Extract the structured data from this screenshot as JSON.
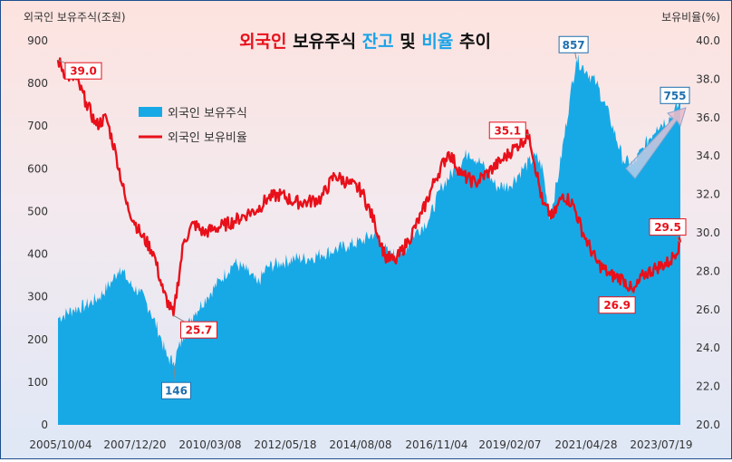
{
  "chart_data": {
    "type": "area+line",
    "title_parts": [
      {
        "text": "외국인",
        "color": "#e8101a"
      },
      {
        "text": " 보유주식 ",
        "color": "#111111"
      },
      {
        "text": "잔고",
        "color": "#1aa3e8"
      },
      {
        "text": " 및 ",
        "color": "#111111"
      },
      {
        "text": "비율",
        "color": "#1aa3e8"
      },
      {
        "text": " 추이",
        "color": "#111111"
      }
    ],
    "y_left_label": "외국인 보유주식(조원)",
    "y_right_label": "보유비율(%)",
    "y_left_range": [
      0,
      900
    ],
    "y_left_ticks": [
      "0",
      "100",
      "200",
      "300",
      "400",
      "500",
      "600",
      "700",
      "800",
      "900"
    ],
    "y_right_range": [
      20.0,
      40.0
    ],
    "y_right_ticks": [
      "20.0",
      "22.0",
      "24.0",
      "26.0",
      "28.0",
      "30.0",
      "32.0",
      "34.0",
      "36.0",
      "38.0",
      "40.0"
    ],
    "x_tick_labels": [
      "2005/10/04",
      "2007/12/20",
      "2010/03/08",
      "2012/05/18",
      "2014/08/08",
      "2016/11/04",
      "2019/02/07",
      "2021/04/28",
      "2023/07/19"
    ],
    "legend": "top-left",
    "series": [
      {
        "name": "외국인 보유주식",
        "axis": "left",
        "kind": "area",
        "color": "#17a9e6",
        "x": [
          2005.76,
          2006.2,
          2006.6,
          2007.0,
          2007.4,
          2007.6,
          2007.9,
          2008.2,
          2008.5,
          2008.8,
          2009.0,
          2009.2,
          2009.5,
          2009.8,
          2010.2,
          2010.6,
          2011.0,
          2011.4,
          2011.7,
          2012.0,
          2012.4,
          2012.8,
          2013.2,
          2013.6,
          2014.0,
          2014.4,
          2014.8,
          2015.2,
          2015.6,
          2016.0,
          2016.4,
          2016.8,
          2017.2,
          2017.6,
          2018.0,
          2018.4,
          2018.8,
          2019.2,
          2019.6,
          2020.0,
          2020.2,
          2020.4,
          2020.7,
          2021.0,
          2021.2,
          2021.5,
          2021.8,
          2022.2,
          2022.6,
          2022.9,
          2023.2,
          2023.6,
          2024.0,
          2024.3
        ],
        "values": [
          250,
          270,
          280,
          300,
          340,
          370,
          330,
          310,
          270,
          210,
          160,
          146,
          210,
          260,
          300,
          340,
          380,
          360,
          330,
          370,
          380,
          390,
          390,
          400,
          410,
          420,
          430,
          450,
          400,
          400,
          450,
          480,
          560,
          600,
          640,
          610,
          560,
          560,
          600,
          630,
          600,
          480,
          600,
          760,
          857,
          830,
          800,
          720,
          620,
          610,
          650,
          700,
          720,
          755
        ]
      },
      {
        "name": "외국인 보유비율",
        "axis": "right",
        "kind": "line",
        "color": "#e8101a",
        "x": [
          2005.76,
          2006.0,
          2006.3,
          2006.6,
          2006.9,
          2007.2,
          2007.5,
          2007.8,
          2008.2,
          2008.6,
          2008.9,
          2009.2,
          2009.5,
          2009.8,
          2010.1,
          2010.4,
          2010.7,
          2011.0,
          2011.4,
          2011.7,
          2012.0,
          2012.4,
          2012.8,
          2013.2,
          2013.6,
          2014.0,
          2014.4,
          2014.8,
          2015.2,
          2015.5,
          2015.8,
          2016.2,
          2016.6,
          2017.0,
          2017.4,
          2017.8,
          2018.2,
          2018.6,
          2019.0,
          2019.4,
          2019.8,
          2020.2,
          2020.5,
          2020.8,
          2021.1,
          2021.4,
          2021.8,
          2022.2,
          2022.6,
          2022.9,
          2023.2,
          2023.6,
          2024.0,
          2024.3
        ],
        "values": [
          39.0,
          38.2,
          38.0,
          36.8,
          35.6,
          36.0,
          34.0,
          31.5,
          30.0,
          29.0,
          26.9,
          25.7,
          29.5,
          30.5,
          30.0,
          30.2,
          30.4,
          30.6,
          31.0,
          31.2,
          31.8,
          32.0,
          31.6,
          31.6,
          31.8,
          33.0,
          32.6,
          32.2,
          30.5,
          28.8,
          28.5,
          29.6,
          31.0,
          32.8,
          34.2,
          33.0,
          32.6,
          33.2,
          33.8,
          34.5,
          35.1,
          31.5,
          30.8,
          32.0,
          31.5,
          30.0,
          28.5,
          27.8,
          27.6,
          26.9,
          27.8,
          28.2,
          28.5,
          29.5
        ]
      }
    ],
    "annotations": [
      {
        "text": "39.0",
        "series": "외국인 보유비율",
        "x": 2005.76,
        "y": 39.0,
        "color": "#e8101a"
      },
      {
        "text": "25.7",
        "series": "외국인 보유비율",
        "x": 2009.2,
        "y": 25.7,
        "color": "#e8101a"
      },
      {
        "text": "35.1",
        "series": "외국인 보유비율",
        "x": 2019.8,
        "y": 35.1,
        "color": "#e8101a"
      },
      {
        "text": "26.9",
        "series": "외국인 보유비율",
        "x": 2022.9,
        "y": 26.9,
        "color": "#e8101a"
      },
      {
        "text": "29.5",
        "series": "외국인 보유비율",
        "x": 2024.3,
        "y": 29.5,
        "color": "#e8101a"
      },
      {
        "text": "146",
        "series": "외국인 보유주식",
        "x": 2009.2,
        "y": 146,
        "color": "#1f6fae"
      },
      {
        "text": "857",
        "series": "외국인 보유주식",
        "x": 2021.2,
        "y": 857,
        "color": "#1f6fae"
      },
      {
        "text": "755",
        "series": "외국인 보유주식",
        "x": 2024.3,
        "y": 755,
        "color": "#1f6fae"
      }
    ],
    "grid": false
  }
}
